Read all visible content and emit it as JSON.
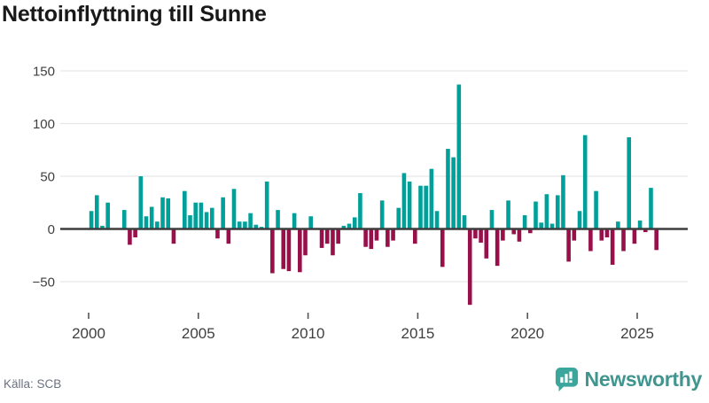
{
  "title": "Nettoinflyttning till Sunne",
  "source": {
    "label": "Källa: SCB"
  },
  "logo": {
    "text": "Newsworthy"
  },
  "colors": {
    "positive": "#00a09a",
    "negative": "#98104a",
    "grid": "#e7e7e7",
    "zero_line": "#3d3d3d",
    "tick_mark": "#555555",
    "axis_text": "#3f3f3f",
    "title_text": "#191919",
    "source_text": "#6b7280",
    "logo_mark": "#3ba79c",
    "logo_text": "#40968f",
    "background": "#ffffff"
  },
  "chart_data": {
    "type": "bar",
    "title": "Nettoinflyttning till Sunne",
    "frequency": "quarterly",
    "x_start": "2000 Q1",
    "x_end": "2025 Q4",
    "xlabel": "",
    "ylabel": "",
    "ylim": [
      -75,
      160
    ],
    "grid": "horizontal",
    "legend": "none",
    "y_ticks": [
      150,
      100,
      50,
      0,
      -50
    ],
    "y_tick_labels": [
      "150",
      "100",
      "50",
      "0",
      "−50"
    ],
    "x_tick_years": [
      "2000",
      "2005",
      "2010",
      "2015",
      "2020",
      "2025"
    ],
    "values": [
      17,
      32,
      3,
      25,
      0,
      0,
      18,
      -15,
      -8,
      50,
      12,
      21,
      7,
      30,
      29,
      -14,
      0,
      36,
      13,
      25,
      25,
      16,
      20,
      -9,
      30,
      -14,
      38,
      7,
      7,
      15,
      4,
      2,
      45,
      -42,
      18,
      -38,
      -40,
      15,
      -41,
      -25,
      12,
      0,
      -18,
      -14,
      -25,
      -14,
      3,
      5,
      11,
      34,
      -17,
      -19,
      -11,
      27,
      -17,
      -11,
      20,
      53,
      45,
      -14,
      41,
      41,
      57,
      17,
      -36,
      76,
      68,
      137,
      13,
      -72,
      -9,
      -13,
      -28,
      18,
      -35,
      -11,
      27,
      -5,
      -12,
      13,
      -4,
      26,
      6,
      33,
      5,
      32,
      51,
      -31,
      -11,
      17,
      89,
      -21,
      36,
      -11,
      -8,
      -34,
      7,
      -21,
      87,
      -14,
      8,
      -3,
      39,
      -20
    ]
  }
}
